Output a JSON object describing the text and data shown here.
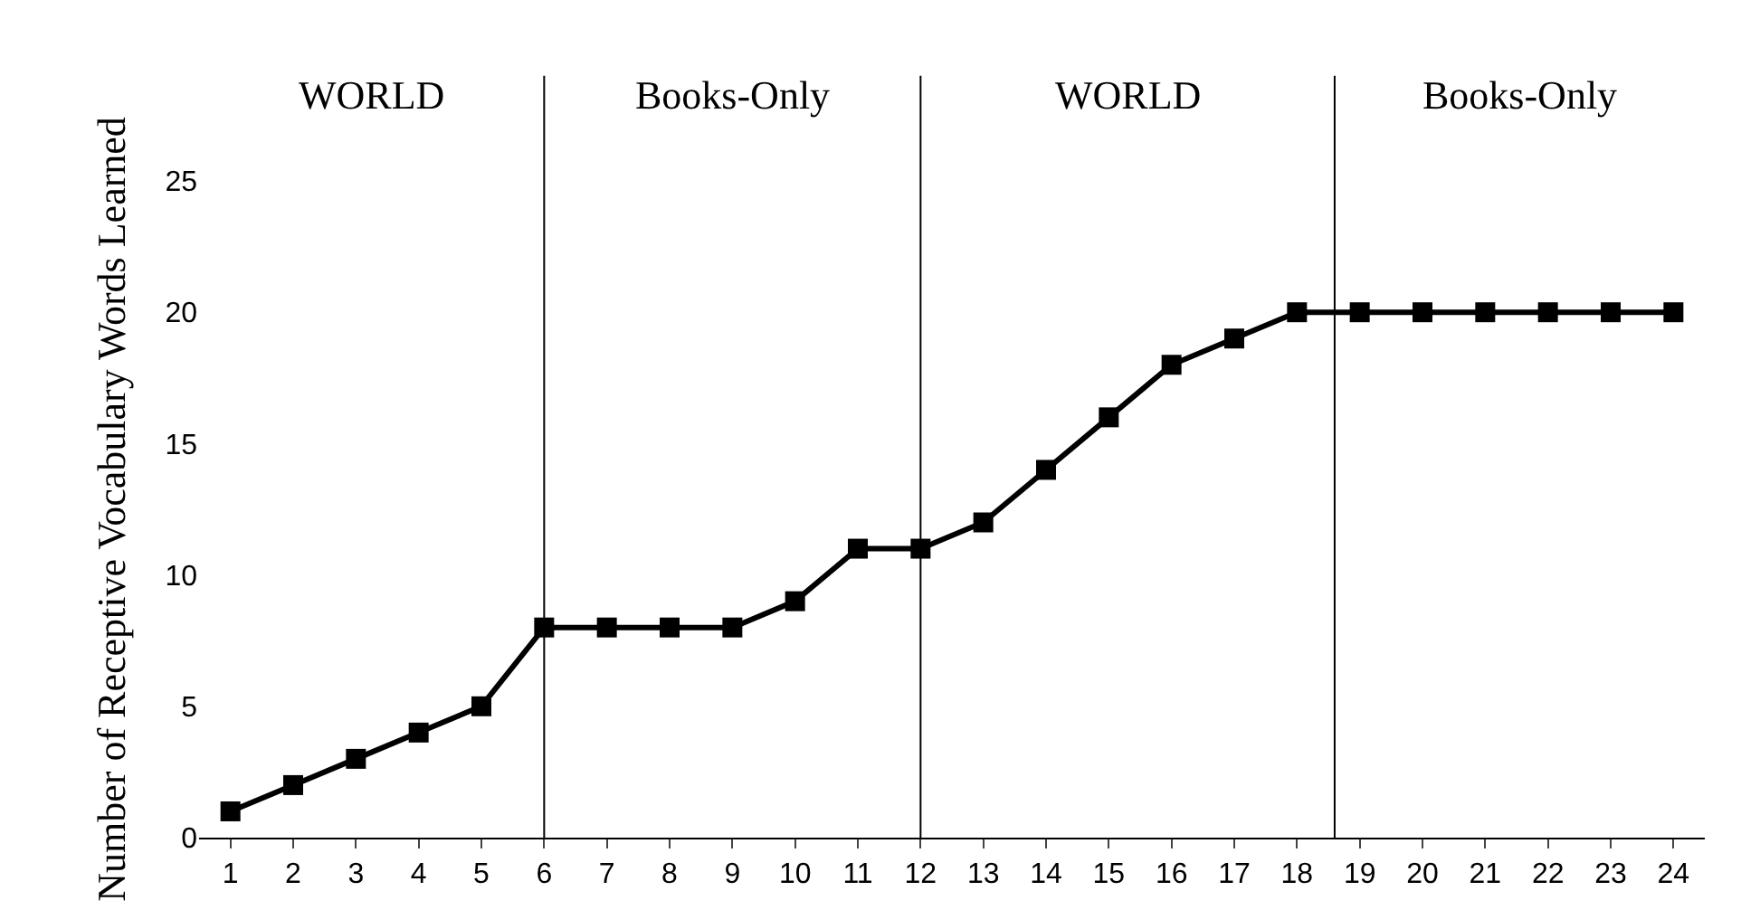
{
  "chart_data": {
    "type": "line",
    "ylabel": "Number of Receptive Vocabulary Words Learned",
    "x": [
      1,
      2,
      3,
      4,
      5,
      6,
      7,
      8,
      9,
      10,
      11,
      12,
      13,
      14,
      15,
      16,
      17,
      18,
      19,
      20,
      21,
      22,
      23,
      24
    ],
    "series": [
      {
        "color": "#000000",
        "values": [
          1,
          2,
          3,
          4,
          5,
          8,
          8,
          8,
          8,
          9,
          11,
          11,
          12,
          14,
          16,
          18,
          19,
          20,
          20,
          20,
          20,
          20,
          20,
          20
        ]
      }
    ],
    "xlim": [
      0.5,
      24.5
    ],
    "xticks": [
      1,
      2,
      3,
      4,
      5,
      6,
      7,
      8,
      9,
      10,
      11,
      12,
      13,
      14,
      15,
      16,
      17,
      18,
      19,
      20,
      21,
      22,
      23,
      24
    ],
    "ylim": [
      0,
      25
    ],
    "yticks": [
      0,
      5,
      10,
      15,
      20,
      25
    ],
    "ref_lines": [
      {
        "axis": "x",
        "value": 6,
        "color": "#000000"
      },
      {
        "axis": "x",
        "value": 12,
        "color": "#000000"
      },
      {
        "axis": "x",
        "value": 18.6,
        "color": "#000000"
      }
    ],
    "annotations": [
      "WORLD",
      "Books-Only",
      "WORLD",
      "Books-Only"
    ],
    "marker": "square",
    "line_style": "solid"
  }
}
